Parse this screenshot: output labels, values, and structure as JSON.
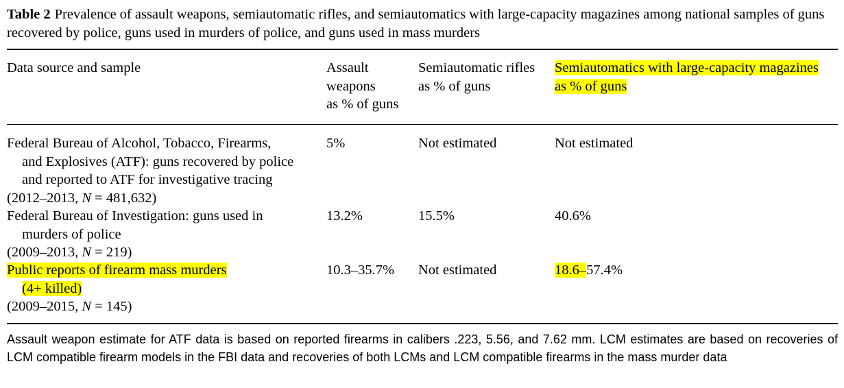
{
  "table": {
    "label": "Table 2",
    "title": "Prevalence of assault weapons, semiautomatic rifles, and semiautomatics with large-capacity magazines among national samples of guns recovered by police, guns used in murders of police, and guns used in mass murders",
    "headers": {
      "source_line1": "Data source and sample",
      "aw_line1": "Assault",
      "aw_line2": "weapons",
      "aw_line3": "as % of guns",
      "sr_line1": "Semiautomatic rifles",
      "sr_line2": "as % of guns",
      "lcm_line1": "Semiautomatics with large-capacity magazines",
      "lcm_line2": "as % of guns"
    },
    "rows": [
      {
        "line1": "Federal Bureau of Alcohol, Tobacco, Firearms,",
        "line2": "and Explosives (ATF): guns recovered by police",
        "line3": "and reported to ATF for investigative tracing",
        "years": "(2012–2013,",
        "n_label": "N",
        "n_value": "= 481,632)",
        "aw": "5%",
        "sr": "Not estimated",
        "lcm": "Not estimated"
      },
      {
        "line1": "Federal Bureau of Investigation: guns used in",
        "line2": "murders of police",
        "years": "(2009–2013,",
        "n_label": "N",
        "n_value": "= 219)",
        "aw": "13.2%",
        "sr": "15.5%",
        "lcm": "40.6%"
      },
      {
        "line1": "Public reports of firearm mass murders",
        "line2": "(4+ killed)",
        "years": "(2009–2015,",
        "n_label": "N",
        "n_value": "= 145)",
        "aw": "10.3–35.7%",
        "sr": "Not estimated",
        "lcm_a": "18.6–",
        "lcm_b": "57.4%"
      }
    ],
    "footnote": "Assault weapon estimate for ATF data is based on reported firearms in calibers .223, 5.56, and 7.62 mm. LCM estimates are based on recoveries of LCM compatible firearm models in the FBI data and recoveries of both LCMs and LCM compatible firearms in the mass murder data"
  },
  "colors": {
    "highlight": "#ffff00",
    "text": "#000000",
    "rule": "#000000"
  }
}
